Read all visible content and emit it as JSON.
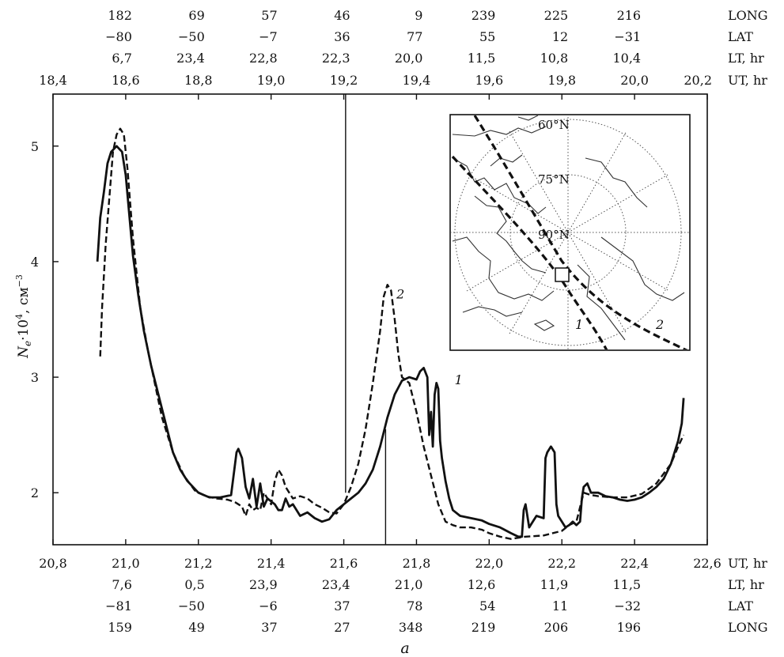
{
  "chart_data": {
    "type": "line",
    "caption": "a",
    "ylabel_base": "N",
    "ylabel_sub": "e",
    "ylabel_mid": "·10",
    "ylabel_sup1": "4",
    "ylabel_unit": ", см",
    "ylabel_sup2": "−3",
    "ylim": [
      1.55,
      5.45
    ],
    "yticks": [
      "2",
      "3",
      "4",
      "5"
    ],
    "ytick_values": [
      2,
      3,
      4,
      5
    ],
    "bottom_axis": {
      "xlim": [
        20.8,
        22.6
      ],
      "ticks": [
        "20,8",
        "21,0",
        "21,2",
        "21,4",
        "21,6",
        "21,8",
        "22,0",
        "22,2",
        "22,4",
        "22,6"
      ],
      "tick_values": [
        20.8,
        21.0,
        21.2,
        21.4,
        21.6,
        21.8,
        22.0,
        22.2,
        22.4,
        22.6
      ],
      "rows": [
        {
          "label": "UT, hr",
          "values": []
        },
        {
          "label": "LT, hr",
          "values": [
            "7,6",
            "0,5",
            "23,9",
            "23,4",
            "21,0",
            "12,6",
            "11,9",
            "11,5"
          ]
        },
        {
          "label": "LAT",
          "values": [
            "−81",
            "−50",
            "−6",
            "37",
            "78",
            "54",
            "11",
            "−32"
          ]
        },
        {
          "label": "LONG",
          "values": [
            "159",
            "49",
            "37",
            "27",
            "348",
            "219",
            "206",
            "196"
          ]
        }
      ]
    },
    "top_axis": {
      "xlim": [
        18.4,
        20.2
      ],
      "ticks": [
        "18,4",
        "18,6",
        "18,8",
        "19,0",
        "19,2",
        "19,4",
        "19,6",
        "19,8",
        "20,0",
        "20,2"
      ],
      "tick_values": [
        18.4,
        18.6,
        18.8,
        19.0,
        19.2,
        19.4,
        19.6,
        19.8,
        20.0,
        20.2
      ],
      "rows": [
        {
          "label": "LONG",
          "values": [
            "182",
            "69",
            "57",
            "46",
            "9",
            "239",
            "225",
            "216"
          ]
        },
        {
          "label": "LAT",
          "values": [
            "−80",
            "−50",
            "−7",
            "36",
            "77",
            "55",
            "12",
            "−31"
          ]
        },
        {
          "label": "LT, hr",
          "values": [
            "6,7",
            "23,4",
            "22,8",
            "22,3",
            "20,0",
            "11,5",
            "10,8",
            "10,4"
          ]
        },
        {
          "label": "UT, hr",
          "values": []
        }
      ]
    },
    "markers": [
      {
        "name": "top-time-marker",
        "axis": "top",
        "x": 19.205,
        "y_from": 2.0,
        "y_to": 5.45
      },
      {
        "name": "bottom-time-marker",
        "axis": "bottom",
        "x": 21.715,
        "y_from": 1.55,
        "y_to": 2.55
      }
    ],
    "series": [
      {
        "name": "1",
        "axis": "bottom",
        "style": "solid",
        "points": [
          [
            20.922,
            4.0
          ],
          [
            20.93,
            4.38
          ],
          [
            20.94,
            4.6
          ],
          [
            20.95,
            4.85
          ],
          [
            20.96,
            4.95
          ],
          [
            20.975,
            5.0
          ],
          [
            20.99,
            4.95
          ],
          [
            21.0,
            4.75
          ],
          [
            21.01,
            4.4
          ],
          [
            21.02,
            4.05
          ],
          [
            21.035,
            3.7
          ],
          [
            21.05,
            3.4
          ],
          [
            21.07,
            3.1
          ],
          [
            21.09,
            2.85
          ],
          [
            21.11,
            2.6
          ],
          [
            21.13,
            2.35
          ],
          [
            21.15,
            2.2
          ],
          [
            21.17,
            2.1
          ],
          [
            21.2,
            2.0
          ],
          [
            21.23,
            1.96
          ],
          [
            21.26,
            1.96
          ],
          [
            21.29,
            1.98
          ],
          [
            21.305,
            2.35
          ],
          [
            21.31,
            2.38
          ],
          [
            21.32,
            2.3
          ],
          [
            21.33,
            2.05
          ],
          [
            21.34,
            1.95
          ],
          [
            21.35,
            2.12
          ],
          [
            21.36,
            1.88
          ],
          [
            21.37,
            2.08
          ],
          [
            21.38,
            1.88
          ],
          [
            21.39,
            1.95
          ],
          [
            21.41,
            1.9
          ],
          [
            21.42,
            1.85
          ],
          [
            21.43,
            1.85
          ],
          [
            21.44,
            1.95
          ],
          [
            21.45,
            1.88
          ],
          [
            21.46,
            1.9
          ],
          [
            21.48,
            1.8
          ],
          [
            21.5,
            1.83
          ],
          [
            21.52,
            1.78
          ],
          [
            21.54,
            1.75
          ],
          [
            21.56,
            1.77
          ],
          [
            21.58,
            1.85
          ],
          [
            21.6,
            1.9
          ],
          [
            21.62,
            1.95
          ],
          [
            21.64,
            2.0
          ],
          [
            21.66,
            2.08
          ],
          [
            21.68,
            2.2
          ],
          [
            21.7,
            2.4
          ],
          [
            21.72,
            2.65
          ],
          [
            21.74,
            2.85
          ],
          [
            21.76,
            2.97
          ],
          [
            21.78,
            3.0
          ],
          [
            21.8,
            2.98
          ],
          [
            21.81,
            3.05
          ],
          [
            21.82,
            3.08
          ],
          [
            21.83,
            3.0
          ],
          [
            21.835,
            2.5
          ],
          [
            21.84,
            2.7
          ],
          [
            21.845,
            2.4
          ],
          [
            21.85,
            2.85
          ],
          [
            21.855,
            2.95
          ],
          [
            21.86,
            2.9
          ],
          [
            21.865,
            2.45
          ],
          [
            21.87,
            2.3
          ],
          [
            21.88,
            2.1
          ],
          [
            21.89,
            1.95
          ],
          [
            21.9,
            1.85
          ],
          [
            21.92,
            1.8
          ],
          [
            21.95,
            1.78
          ],
          [
            21.98,
            1.76
          ],
          [
            22.0,
            1.73
          ],
          [
            22.03,
            1.7
          ],
          [
            22.06,
            1.65
          ],
          [
            22.08,
            1.62
          ],
          [
            22.09,
            1.62
          ],
          [
            22.095,
            1.85
          ],
          [
            22.1,
            1.9
          ],
          [
            22.11,
            1.7
          ],
          [
            22.12,
            1.75
          ],
          [
            22.13,
            1.8
          ],
          [
            22.15,
            1.78
          ],
          [
            22.155,
            2.3
          ],
          [
            22.16,
            2.35
          ],
          [
            22.17,
            2.4
          ],
          [
            22.18,
            2.35
          ],
          [
            22.185,
            1.9
          ],
          [
            22.19,
            1.8
          ],
          [
            22.2,
            1.75
          ],
          [
            22.21,
            1.7
          ],
          [
            22.22,
            1.72
          ],
          [
            22.23,
            1.75
          ],
          [
            22.24,
            1.72
          ],
          [
            22.25,
            1.75
          ],
          [
            22.255,
            1.95
          ],
          [
            22.26,
            2.05
          ],
          [
            22.27,
            2.08
          ],
          [
            22.28,
            2.0
          ],
          [
            22.3,
            2.0
          ],
          [
            22.32,
            1.97
          ],
          [
            22.34,
            1.96
          ],
          [
            22.36,
            1.94
          ],
          [
            22.38,
            1.93
          ],
          [
            22.4,
            1.94
          ],
          [
            22.42,
            1.96
          ],
          [
            22.44,
            2.0
          ],
          [
            22.46,
            2.05
          ],
          [
            22.48,
            2.12
          ],
          [
            22.5,
            2.25
          ],
          [
            22.52,
            2.45
          ],
          [
            22.53,
            2.6
          ],
          [
            22.535,
            2.82
          ]
        ]
      },
      {
        "name": "2",
        "axis": "bottom",
        "style": "dashed",
        "points": [
          [
            20.93,
            3.18
          ],
          [
            20.935,
            3.6
          ],
          [
            20.945,
            4.15
          ],
          [
            20.955,
            4.55
          ],
          [
            20.965,
            4.95
          ],
          [
            20.975,
            5.1
          ],
          [
            20.985,
            5.15
          ],
          [
            20.995,
            5.1
          ],
          [
            21.005,
            4.8
          ],
          [
            21.02,
            4.2
          ],
          [
            21.04,
            3.6
          ],
          [
            21.06,
            3.25
          ],
          [
            21.08,
            2.95
          ],
          [
            21.1,
            2.65
          ],
          [
            21.13,
            2.35
          ],
          [
            21.16,
            2.15
          ],
          [
            21.19,
            2.02
          ],
          [
            21.22,
            1.97
          ],
          [
            21.25,
            1.95
          ],
          [
            21.28,
            1.94
          ],
          [
            21.3,
            1.92
          ],
          [
            21.31,
            1.9
          ],
          [
            21.32,
            1.88
          ],
          [
            21.33,
            1.8
          ],
          [
            21.34,
            1.9
          ],
          [
            21.35,
            1.85
          ],
          [
            21.36,
            1.87
          ],
          [
            21.37,
            1.85
          ],
          [
            21.38,
            2.0
          ],
          [
            21.4,
            1.9
          ],
          [
            21.41,
            2.1
          ],
          [
            21.42,
            2.2
          ],
          [
            21.43,
            2.15
          ],
          [
            21.44,
            2.05
          ],
          [
            21.45,
            2.0
          ],
          [
            21.46,
            1.95
          ],
          [
            21.48,
            1.97
          ],
          [
            21.5,
            1.95
          ],
          [
            21.52,
            1.9
          ],
          [
            21.54,
            1.87
          ],
          [
            21.56,
            1.83
          ],
          [
            21.58,
            1.82
          ],
          [
            21.6,
            1.9
          ],
          [
            21.62,
            2.05
          ],
          [
            21.64,
            2.25
          ],
          [
            21.66,
            2.55
          ],
          [
            21.68,
            2.95
          ],
          [
            21.7,
            3.4
          ],
          [
            21.71,
            3.7
          ],
          [
            21.72,
            3.8
          ],
          [
            21.73,
            3.75
          ],
          [
            21.74,
            3.5
          ],
          [
            21.75,
            3.2
          ],
          [
            21.76,
            3.0
          ],
          [
            21.78,
            2.95
          ],
          [
            21.8,
            2.7
          ],
          [
            21.82,
            2.4
          ],
          [
            21.84,
            2.15
          ],
          [
            21.86,
            1.9
          ],
          [
            21.88,
            1.75
          ],
          [
            21.9,
            1.72
          ],
          [
            21.92,
            1.7
          ],
          [
            21.95,
            1.7
          ],
          [
            21.98,
            1.68
          ],
          [
            22.0,
            1.65
          ],
          [
            22.03,
            1.62
          ],
          [
            22.06,
            1.6
          ],
          [
            22.1,
            1.62
          ],
          [
            22.15,
            1.63
          ],
          [
            22.2,
            1.67
          ],
          [
            22.22,
            1.72
          ],
          [
            22.24,
            1.75
          ],
          [
            22.26,
            2.0
          ],
          [
            22.28,
            1.98
          ],
          [
            22.3,
            1.97
          ],
          [
            22.34,
            1.96
          ],
          [
            22.38,
            1.96
          ],
          [
            22.42,
            1.99
          ],
          [
            22.46,
            2.08
          ],
          [
            22.5,
            2.25
          ],
          [
            22.52,
            2.4
          ],
          [
            22.535,
            2.5
          ]
        ]
      }
    ],
    "curve_labels": [
      {
        "text": "2",
        "x": 21.745,
        "y": 3.68
      },
      {
        "text": "1",
        "x": 21.905,
        "y": 2.94
      }
    ],
    "inset": {
      "type": "map",
      "projection": "north polar",
      "latitude_labels": [
        "60°N",
        "75°N",
        "90°N"
      ],
      "track_labels": [
        "1",
        "2"
      ]
    }
  }
}
